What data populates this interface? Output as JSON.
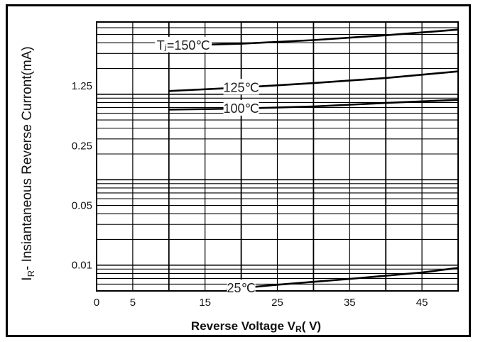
{
  "chart_data": {
    "type": "line",
    "xlabel_main": "Reverse  Voltage V",
    "xlabel_sub": "R",
    "xlabel_tail": "( V)",
    "ylabel_main": "I",
    "ylabel_sub": "R",
    "ylabel_tail": "- Insiantaneous Reverse Curront(mA)",
    "x_tick_labels": [
      {
        "x": 0,
        "label": "0"
      },
      {
        "x": 5,
        "label": "5"
      },
      {
        "x": 15,
        "label": "15"
      },
      {
        "x": 25,
        "label": "25"
      },
      {
        "x": 35,
        "label": "35"
      },
      {
        "x": 45,
        "label": "45"
      }
    ],
    "y_tick_labels": [
      {
        "y": 1.25,
        "label": "1.25"
      },
      {
        "y": 0.25,
        "label": "0.25"
      },
      {
        "y": 0.05,
        "label": "0.05"
      },
      {
        "y": 0.01,
        "label": "0.01"
      }
    ],
    "xlim": [
      0,
      50
    ],
    "ylim": [
      0.005,
      7.0
    ],
    "y_scale": "log",
    "grid": true,
    "series": [
      {
        "name": "Tⱼ=150℃",
        "x": [
          10,
          20,
          30,
          40,
          50
        ],
        "y": [
          3.7,
          3.9,
          4.3,
          4.9,
          5.7
        ],
        "label_at": 12
      },
      {
        "name": "125℃",
        "x": [
          10,
          20,
          30,
          40,
          50
        ],
        "y": [
          1.09,
          1.2,
          1.35,
          1.55,
          1.85
        ],
        "label_at": 20
      },
      {
        "name": "100℃",
        "x": [
          10,
          20,
          30,
          40,
          50
        ],
        "y": [
          0.66,
          0.68,
          0.72,
          0.79,
          0.86
        ],
        "label_at": 20
      },
      {
        "name": "25℃",
        "x": [
          18,
          25,
          35,
          45,
          50
        ],
        "y": [
          0.0052,
          0.0059,
          0.0069,
          0.0082,
          0.0093
        ],
        "label_at": 20
      }
    ]
  }
}
